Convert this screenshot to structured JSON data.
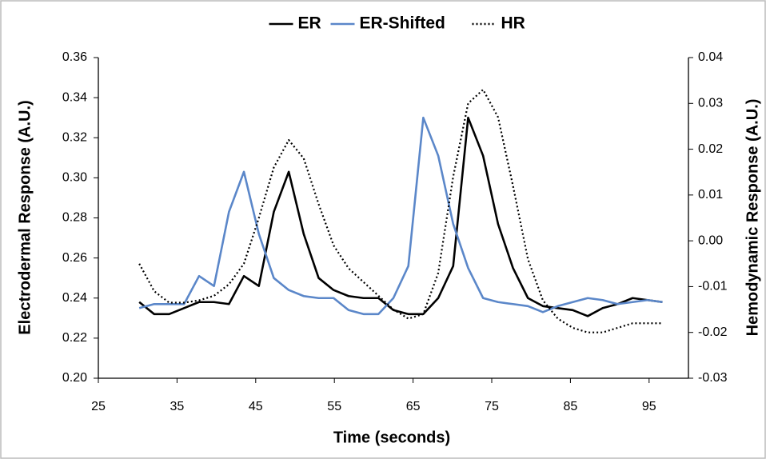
{
  "chart_data": {
    "type": "line",
    "xlabel": "Time (seconds)",
    "ylabel": "Electrodermal Response (A.U.)",
    "y2label": "Hemodynamic Response (A.U.)",
    "x": [
      30.2,
      32.1,
      34.0,
      35.9,
      37.8,
      39.7,
      41.6,
      43.5,
      45.4,
      47.3,
      49.2,
      51.1,
      53.0,
      54.9,
      56.8,
      58.7,
      60.6,
      62.5,
      64.4,
      66.3,
      68.2,
      70.1,
      72.0,
      73.9,
      75.8,
      77.7,
      79.6,
      81.5,
      83.4,
      85.3,
      87.2,
      89.1,
      91.0,
      92.9,
      94.8,
      96.7
    ],
    "series": [
      {
        "name": "ER",
        "color": "#000000",
        "linestyle": "solid",
        "values": [
          0.238,
          0.232,
          0.232,
          0.235,
          0.238,
          0.238,
          0.237,
          0.251,
          0.246,
          0.283,
          0.303,
          0.272,
          0.25,
          0.244,
          0.241,
          0.24,
          0.24,
          0.234,
          0.232,
          0.232,
          0.24,
          0.256,
          0.33,
          0.311,
          0.277,
          0.255,
          0.24,
          0.236,
          0.235,
          0.234,
          0.231,
          0.235,
          0.237,
          0.24,
          0.239,
          0.238
        ]
      },
      {
        "name": "ER-Shifted",
        "color": "#5b87c9",
        "linestyle": "solid",
        "values": [
          0.235,
          0.237,
          0.237,
          0.237,
          0.251,
          0.246,
          0.283,
          0.303,
          0.272,
          0.25,
          0.244,
          0.241,
          0.24,
          0.24,
          0.234,
          0.232,
          0.232,
          0.24,
          0.256,
          0.33,
          0.311,
          0.277,
          0.255,
          0.24,
          0.238,
          0.237,
          0.236,
          0.233,
          0.236,
          0.238,
          0.24,
          0.239,
          0.237,
          0.238,
          0.239,
          0.238
        ]
      },
      {
        "name": "HR",
        "color": "#000000",
        "linestyle": "dotted",
        "axis": "y2",
        "values": [
          -0.005,
          -0.011,
          -0.0135,
          -0.0135,
          -0.013,
          -0.012,
          -0.0095,
          -0.005,
          0.005,
          0.016,
          0.022,
          0.018,
          0.008,
          -0.001,
          -0.006,
          -0.009,
          -0.012,
          -0.015,
          -0.017,
          -0.016,
          -0.007,
          0.014,
          0.03,
          0.033,
          0.027,
          0.012,
          -0.004,
          -0.013,
          -0.017,
          -0.019,
          -0.02,
          -0.02,
          -0.019,
          -0.018,
          -0.018,
          -0.018
        ]
      }
    ],
    "xlim": [
      25,
      100
    ],
    "xticks": [
      25,
      35,
      45,
      55,
      65,
      75,
      85,
      95
    ],
    "ylim": [
      0.2,
      0.36
    ],
    "yticks": [
      {
        "value": 0.2,
        "label": "0.20"
      },
      {
        "value": 0.22,
        "label": "0.22"
      },
      {
        "value": 0.24,
        "label": "0.24"
      },
      {
        "value": 0.26,
        "label": "0.26"
      },
      {
        "value": 0.28,
        "label": "0.28"
      },
      {
        "value": 0.3,
        "label": "0.30"
      },
      {
        "value": 0.32,
        "label": "0.32"
      },
      {
        "value": 0.34,
        "label": "0.34"
      },
      {
        "value": 0.36,
        "label": "0.36"
      }
    ],
    "y2lim": [
      -0.03,
      0.04
    ],
    "y2ticks": [
      {
        "value": -0.03,
        "label": "-0.03"
      },
      {
        "value": -0.02,
        "label": "-0.02"
      },
      {
        "value": -0.01,
        "label": "-0.01"
      },
      {
        "value": 0,
        "label": "0.00"
      },
      {
        "value": 0.01,
        "label": "0.01"
      },
      {
        "value": 0.02,
        "label": "0.02"
      },
      {
        "value": 0.03,
        "label": "0.03"
      },
      {
        "value": 0.04,
        "label": "0.04"
      }
    ],
    "grid": false,
    "legend": "top"
  }
}
